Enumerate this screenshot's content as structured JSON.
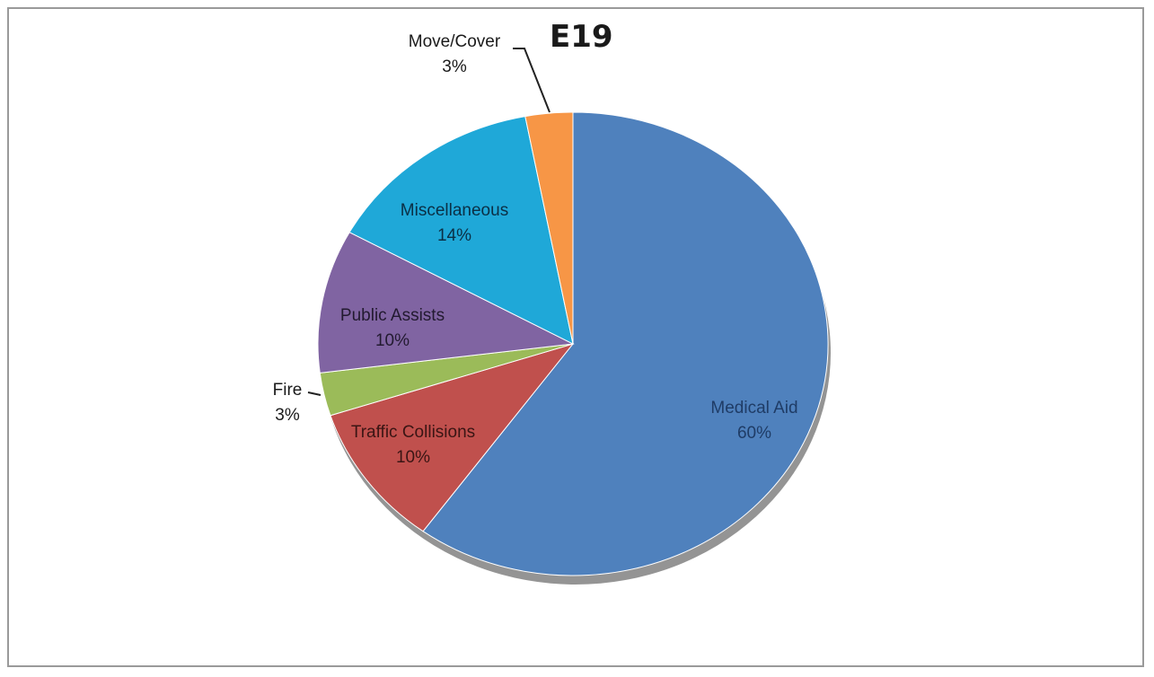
{
  "chart_data": {
    "type": "pie",
    "title": "E19",
    "slices": [
      {
        "label": "Medical Aid",
        "value": 60,
        "value_label": "60%",
        "color": "#4f81bd",
        "label_color": "#1f3c66"
      },
      {
        "label": "Traffic Collisions",
        "value": 10,
        "value_label": "10%",
        "color": "#c0504d",
        "label_color": "#3a1514"
      },
      {
        "label": "Fire",
        "value": 3,
        "value_label": "3%",
        "color": "#9bbb59",
        "label_color": "#1a1a1a"
      },
      {
        "label": "Public Assists",
        "value": 10,
        "value_label": "10%",
        "color": "#8064a2",
        "label_color": "#221a30"
      },
      {
        "label": "Miscellaneous",
        "value": 14,
        "value_label": "14%",
        "color": "#1fa8d8",
        "label_color": "#0b2f45"
      },
      {
        "label": "Move/Cover",
        "value": 3,
        "value_label": "3%",
        "color": "#f79646",
        "label_color": "#1a1a1a"
      }
    ],
    "start_angle": "12 o'clock",
    "direction": "clockwise",
    "legend": "none"
  }
}
